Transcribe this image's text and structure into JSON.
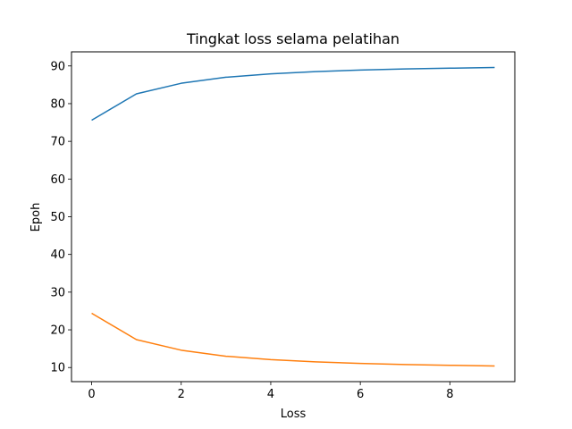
{
  "chart_data": {
    "type": "line",
    "title": "Tingkat loss selama pelatihan",
    "xlabel": "Loss",
    "ylabel": "Epoh",
    "x": [
      0,
      1,
      2,
      3,
      4,
      5,
      6,
      7,
      8,
      9
    ],
    "series": [
      {
        "values": [
          75.6,
          82.6,
          85.4,
          87.0,
          87.9,
          88.5,
          88.9,
          89.2,
          89.4,
          89.6
        ],
        "color": "#1f77b4"
      },
      {
        "values": [
          24.4,
          17.4,
          14.6,
          13.0,
          12.1,
          11.5,
          11.1,
          10.8,
          10.6,
          10.4
        ],
        "color": "#ff7f0e"
      }
    ],
    "xlim": [
      -0.45,
      9.45
    ],
    "ylim": [
      6.26,
      93.74
    ],
    "xticks": [
      0,
      2,
      4,
      6,
      8
    ],
    "yticks": [
      10,
      20,
      30,
      40,
      50,
      60,
      70,
      80,
      90
    ],
    "grid": false
  }
}
